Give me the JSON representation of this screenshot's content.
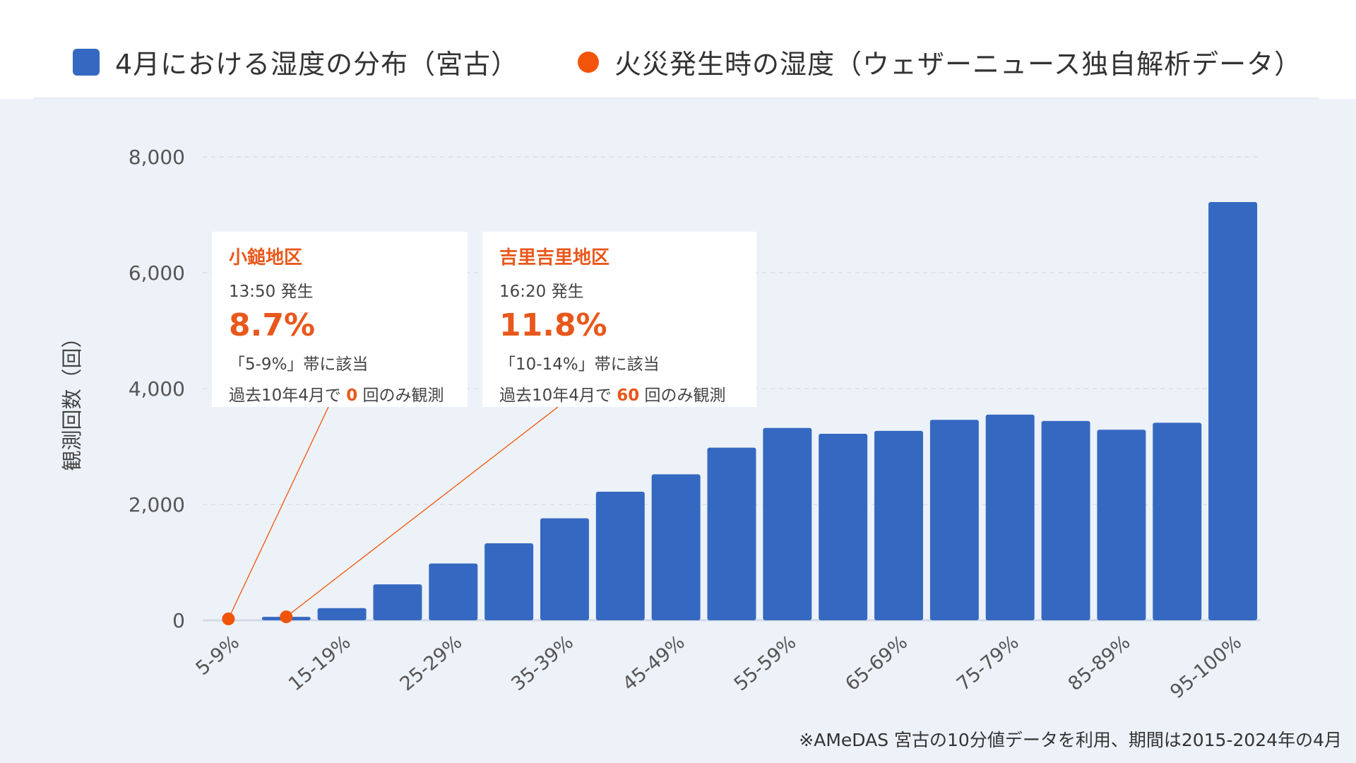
{
  "legend": {
    "bar_label": "4月における湿度の分布（宮古）",
    "dot_label": "火災発生時の湿度（ウェザーニュース独自解析データ）"
  },
  "colors": {
    "bar": "#3569c1",
    "fire": "#f25409",
    "plot_background": "#edf2f8",
    "accent_text": "#e8581c"
  },
  "chart_data": {
    "type": "bar",
    "ylabel": "観測回数（回）",
    "ylim": [
      0,
      8000
    ],
    "yticks": [
      0,
      2000,
      4000,
      6000,
      8000
    ],
    "ytick_labels": [
      "0",
      "2,000",
      "4,000",
      "6,000",
      "8,000"
    ],
    "grid": true,
    "legend_position": "top",
    "categories": [
      "5-9%",
      "10-14%",
      "15-19%",
      "20-24%",
      "25-29%",
      "30-34%",
      "35-39%",
      "40-44%",
      "45-49%",
      "50-54%",
      "55-59%",
      "60-64%",
      "65-69%",
      "70-74%",
      "75-79%",
      "80-84%",
      "85-89%",
      "90-94%",
      "95-100%"
    ],
    "visible_category_labels": [
      "5-9%",
      "15-19%",
      "25-29%",
      "35-39%",
      "45-49%",
      "55-59%",
      "65-69%",
      "75-79%",
      "85-89%",
      "95-100%"
    ],
    "series": [
      {
        "name": "4月における湿度の分布（宮古）",
        "values": [
          0,
          60,
          210,
          620,
          980,
          1330,
          1760,
          2220,
          2520,
          2980,
          3320,
          3220,
          3270,
          3460,
          3550,
          3440,
          3290,
          3410,
          7220
        ]
      },
      {
        "name": "火災発生時の湿度（ウェザーニュース独自解析データ）",
        "type": "scatter",
        "points": [
          {
            "category": "5-9%",
            "value": 0
          },
          {
            "category": "10-14%",
            "value": 60
          }
        ]
      }
    ]
  },
  "callouts": [
    {
      "title": "小鎚地区",
      "time": "13:50 発生",
      "value": "8.7%",
      "band": "「5-9%」帯に該当",
      "obs_prefix": "過去10年4月で ",
      "obs_count": "0",
      "obs_suffix": " 回のみ観測"
    },
    {
      "title": "吉里吉里地区",
      "time": "16:20 発生",
      "value": "11.8%",
      "band": "「10-14%」帯に該当",
      "obs_prefix": "過去10年4月で ",
      "obs_count": "60",
      "obs_suffix": " 回のみ観測"
    }
  ],
  "footnote": "※AMeDAS 宮古の10分値データを利用、期間は2015-2024年の4月"
}
